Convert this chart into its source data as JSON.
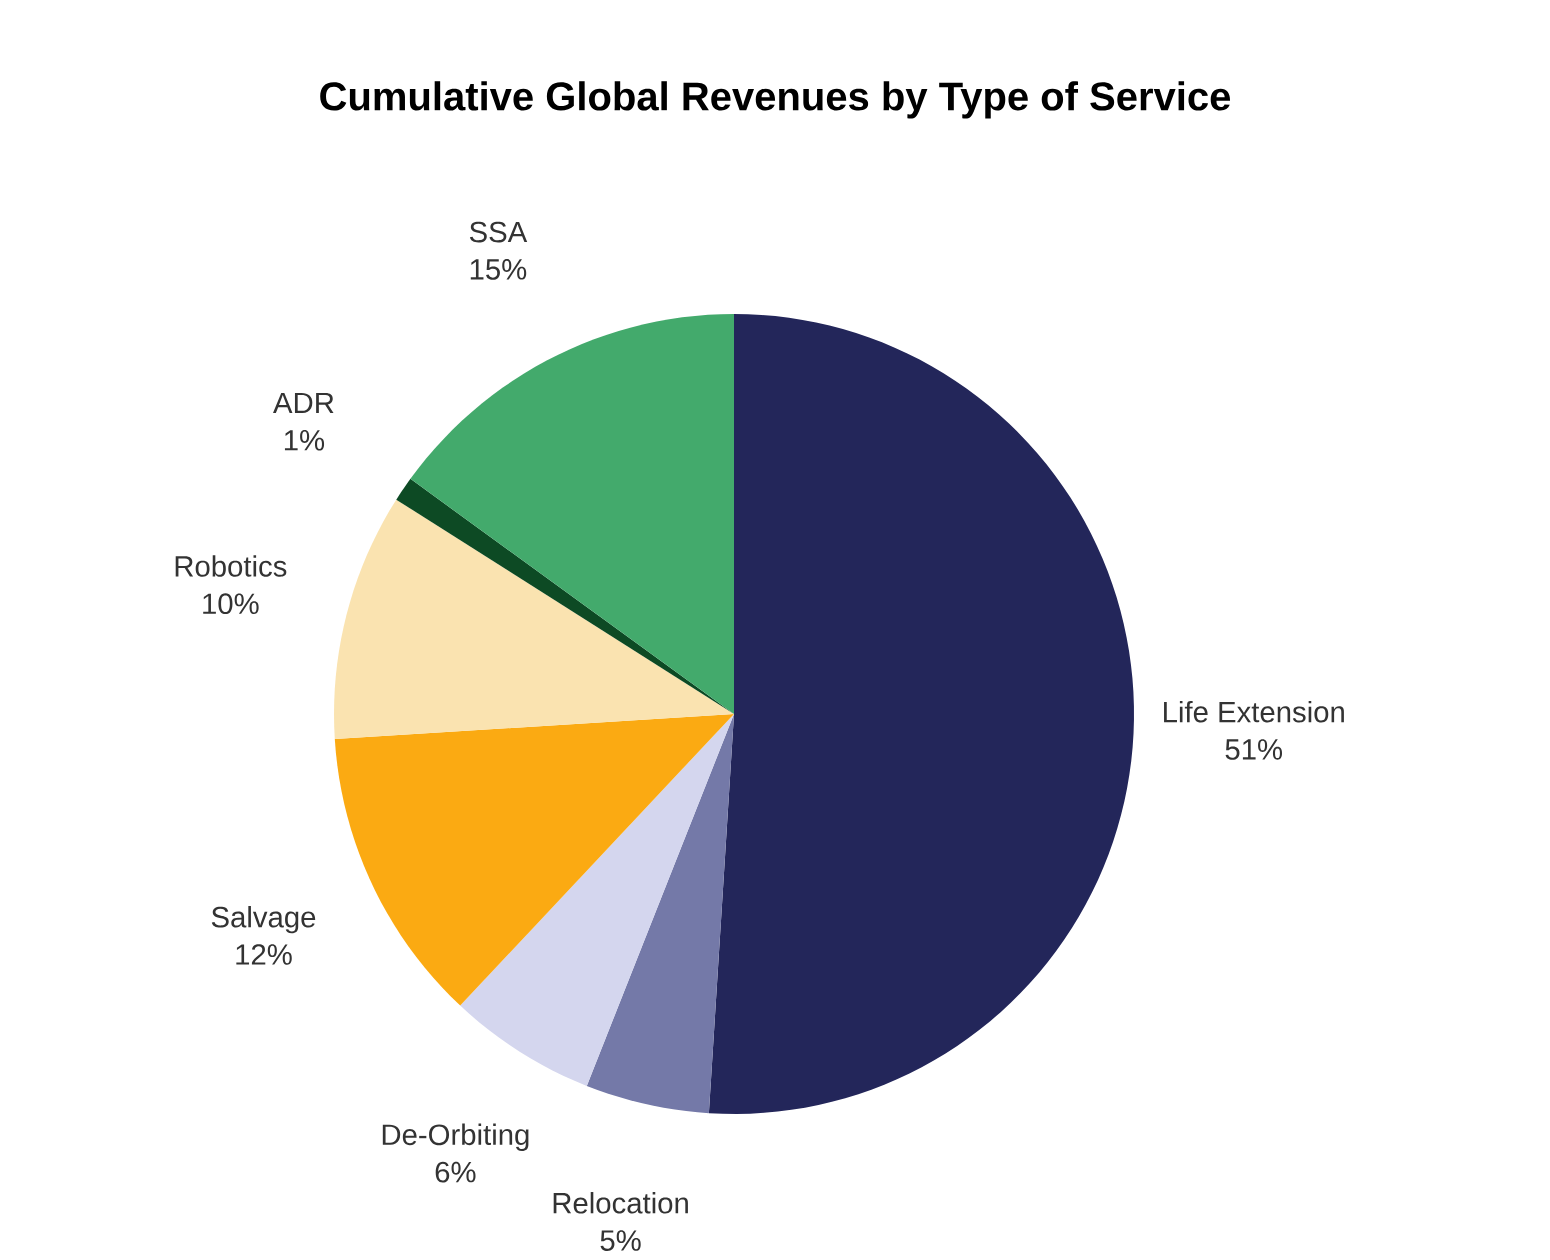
{
  "chart_data": {
    "type": "pie",
    "title": "Cumulative Global Revenues by Type of Service",
    "categories": [
      "Life Extension",
      "Relocation",
      "De-Orbiting",
      "Salvage",
      "Robotics",
      "ADR",
      "SSA"
    ],
    "values": [
      51,
      5,
      6,
      12,
      10,
      1,
      15
    ],
    "value_labels": [
      "51%",
      "5%",
      "6%",
      "12%",
      "10%",
      "1%",
      "15%"
    ],
    "colors": [
      "#23265a",
      "#7479a8",
      "#d4d6ee",
      "#fbaa12",
      "#fae3b0",
      "#0d4a24",
      "#43aa6c"
    ]
  }
}
